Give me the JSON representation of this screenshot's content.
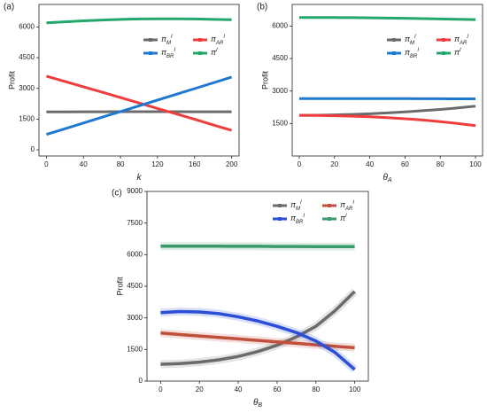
{
  "chart_data": [
    {
      "type": "line",
      "panel": "(a)",
      "y_label": "Profit",
      "x_label": "k",
      "legend": "upper right",
      "x": [
        0,
        20,
        40,
        60,
        80,
        100,
        120,
        140,
        160,
        180,
        200
      ],
      "xlim": [
        -8,
        208
      ],
      "xticks": [
        0,
        40,
        80,
        120,
        160,
        200
      ],
      "ylim": [
        -300,
        7100
      ],
      "yticks": [
        0,
        1500,
        3000,
        4500,
        6000
      ],
      "series": [
        {
          "name": "π",
          "sub": "M",
          "sup": "I",
          "color": "#6b6b6b",
          "values": [
            1850,
            1855,
            1860,
            1860,
            1865,
            1865,
            1865,
            1865,
            1860,
            1860,
            1860
          ]
        },
        {
          "name": "π",
          "sub": "AR",
          "sup": "I",
          "color": "#f03c3c",
          "values": [
            3600,
            3340,
            3080,
            2820,
            2550,
            2290,
            2020,
            1760,
            1490,
            1220,
            950
          ]
        },
        {
          "name": "π",
          "sub": "BR",
          "sup": "I",
          "color": "#1f78d0",
          "values": [
            750,
            1030,
            1310,
            1590,
            1870,
            2150,
            2430,
            2710,
            2990,
            3270,
            3550
          ]
        },
        {
          "name": "π",
          "sup": "I",
          "color": "#22a86a",
          "values": [
            6200,
            6250,
            6300,
            6340,
            6370,
            6390,
            6400,
            6400,
            6390,
            6370,
            6350
          ]
        }
      ]
    },
    {
      "type": "line",
      "panel": "(b)",
      "y_label": "Profit",
      "x_label": "θ",
      "x_label_sub": "A",
      "legend": "upper right",
      "x": [
        0,
        10,
        20,
        30,
        40,
        50,
        60,
        70,
        80,
        90,
        100
      ],
      "xlim": [
        -4,
        104
      ],
      "xticks": [
        0,
        20,
        40,
        60,
        80,
        100
      ],
      "ylim": [
        0,
        7000
      ],
      "yticks": [
        1500,
        3000,
        4500,
        6000
      ],
      "series": [
        {
          "name": "π",
          "sub": "M",
          "sup": "I",
          "color": "#6b6b6b",
          "values": [
            1880,
            1885,
            1900,
            1920,
            1950,
            1990,
            2040,
            2090,
            2150,
            2220,
            2300
          ]
        },
        {
          "name": "π",
          "sub": "AR",
          "sup": "I",
          "color": "#f03c3c",
          "values": [
            1880,
            1875,
            1860,
            1840,
            1810,
            1770,
            1720,
            1660,
            1590,
            1500,
            1400
          ]
        },
        {
          "name": "π",
          "sub": "BR",
          "sup": "I",
          "color": "#1f78d0",
          "values": [
            2650,
            2650,
            2650,
            2650,
            2650,
            2650,
            2648,
            2646,
            2644,
            2642,
            2640
          ]
        },
        {
          "name": "π",
          "sup": "I",
          "color": "#22a86a",
          "values": [
            6400,
            6400,
            6395,
            6390,
            6380,
            6370,
            6360,
            6345,
            6330,
            6315,
            6300
          ]
        }
      ]
    },
    {
      "type": "line",
      "panel": "(c)",
      "y_label": "Profit",
      "x_label": "θ",
      "x_label_sub": "B",
      "legend": "upper right",
      "x": [
        0,
        10,
        20,
        30,
        40,
        50,
        60,
        70,
        80,
        90,
        100
      ],
      "xlim": [
        -7,
        107
      ],
      "xticks": [
        0,
        20,
        40,
        60,
        80,
        100
      ],
      "ylim": [
        0,
        9000
      ],
      "yticks": [
        0,
        1500,
        3000,
        4500,
        6000,
        7500,
        9000
      ],
      "series": [
        {
          "name": "π",
          "sub": "M",
          "sup": "I",
          "color": "#6b6b6b",
          "values": [
            800,
            830,
            900,
            1010,
            1170,
            1400,
            1700,
            2100,
            2600,
            3350,
            4250
          ]
        },
        {
          "name": "π",
          "sub": "AR",
          "sup": "I",
          "color": "#c0503c",
          "values": [
            2280,
            2210,
            2140,
            2070,
            2000,
            1930,
            1860,
            1790,
            1720,
            1650,
            1580
          ]
        },
        {
          "name": "π",
          "sub": "BR",
          "sup": "I",
          "color": "#2a4fd6",
          "values": [
            3250,
            3300,
            3280,
            3200,
            3050,
            2850,
            2600,
            2300,
            1900,
            1350,
            550
          ]
        },
        {
          "name": "π",
          "sup": "I",
          "color": "#3a9a6a",
          "values": [
            6400,
            6400,
            6400,
            6400,
            6395,
            6395,
            6390,
            6390,
            6385,
            6385,
            6380
          ]
        }
      ]
    }
  ]
}
